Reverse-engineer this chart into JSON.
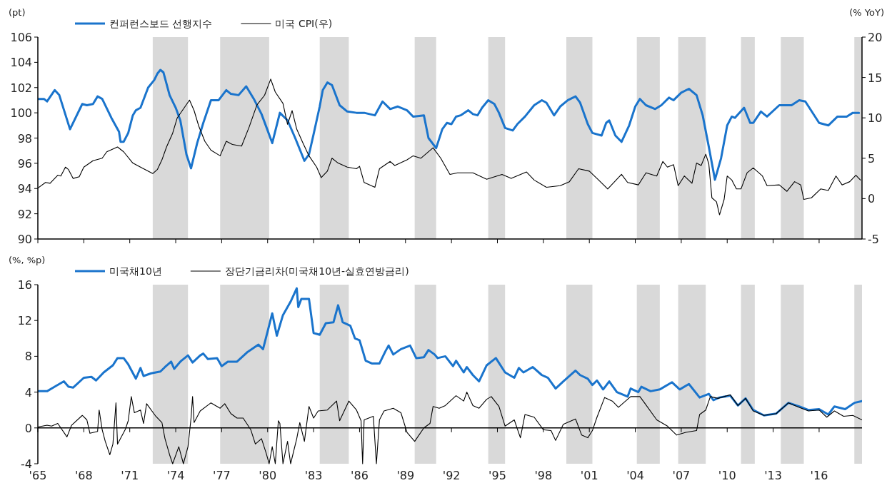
{
  "chart_data": [
    {
      "type": "line",
      "ylabel": "(pt)",
      "y2label": "(% YoY)",
      "legend": "top",
      "tick_labels": "y",
      "xlim": [
        1965,
        2018.8
      ],
      "xticks": [
        {
          "value": 1965,
          "label": null
        },
        {
          "value": 1968,
          "label": null
        },
        {
          "value": 1971,
          "label": null
        },
        {
          "value": 1974,
          "label": null
        },
        {
          "value": 1977,
          "label": null
        },
        {
          "value": 1980,
          "label": null
        },
        {
          "value": 1983,
          "label": null
        },
        {
          "value": 1986,
          "label": null
        },
        {
          "value": 1989,
          "label": null
        },
        {
          "value": 1992,
          "label": null
        },
        {
          "value": 1995,
          "label": null
        },
        {
          "value": 1998,
          "label": null
        },
        {
          "value": 2001,
          "label": null
        },
        {
          "value": 2004,
          "label": null
        },
        {
          "value": 2007,
          "label": null
        },
        {
          "value": 2010,
          "label": null
        },
        {
          "value": 2013,
          "label": null
        },
        {
          "value": 2016,
          "label": null
        }
      ],
      "ylim": [
        90,
        106
      ],
      "yticks": [
        90,
        92,
        94,
        96,
        98,
        100,
        102,
        104,
        106
      ],
      "y2lim": [
        -5,
        20
      ],
      "y2ticks": [
        -5,
        0,
        5,
        10,
        15,
        20
      ],
      "bands": [
        {
          "axis": "x",
          "from": 1972.5,
          "to": 1974.8,
          "color": "#d9d9d9"
        },
        {
          "axis": "x",
          "from": 1976.9,
          "to": 1980.1,
          "color": "#d9d9d9"
        },
        {
          "axis": "x",
          "from": 1983.4,
          "to": 1985.3,
          "color": "#d9d9d9"
        },
        {
          "axis": "x",
          "from": 1989.6,
          "to": 1991.0,
          "color": "#d9d9d9"
        },
        {
          "axis": "x",
          "from": 1994.4,
          "to": 1995.5,
          "color": "#d9d9d9"
        },
        {
          "axis": "x",
          "from": 1999.5,
          "to": 2001.2,
          "color": "#d9d9d9"
        },
        {
          "axis": "x",
          "from": 2004.1,
          "to": 2005.6,
          "color": "#d9d9d9"
        },
        {
          "axis": "x",
          "from": 2006.8,
          "to": 2008.6,
          "color": "#d9d9d9"
        },
        {
          "axis": "x",
          "from": 2010.9,
          "to": 2011.8,
          "color": "#d9d9d9"
        },
        {
          "axis": "x",
          "from": 2013.5,
          "to": 2015.0,
          "color": "#d9d9d9"
        },
        {
          "axis": "x",
          "from": 2018.3,
          "to": 2018.8,
          "color": "#d9d9d9"
        }
      ],
      "series": [
        {
          "name": "컨퍼런스보드 선행지수",
          "color": "#1a74cc",
          "x": [
            1965.0,
            1965.4,
            1965.6,
            1966.1,
            1966.4,
            1967.1,
            1967.9,
            1968.2,
            1968.6,
            1968.9,
            1969.2,
            1969.8,
            1970.3,
            1970.4,
            1970.6,
            1970.9,
            1971.2,
            1971.4,
            1971.7,
            1972.2,
            1972.6,
            1972.8,
            1973.0,
            1973.2,
            1973.6,
            1974.0,
            1974.3,
            1974.7,
            1975.0,
            1975.4,
            1975.8,
            1976.3,
            1976.8,
            1977.3,
            1977.6,
            1978.1,
            1978.6,
            1979.1,
            1979.6,
            1980.0,
            1980.3,
            1980.8,
            1981.3,
            1981.8,
            1982.3,
            1982.4,
            1982.7,
            1983.0,
            1983.4,
            1983.6,
            1983.9,
            1984.2,
            1984.7,
            1985.2,
            1985.8,
            1986.3,
            1987.0,
            1987.5,
            1988.0,
            1988.5,
            1989.1,
            1989.5,
            1990.2,
            1990.5,
            1991.0,
            1991.4,
            1991.7,
            1992.0,
            1992.3,
            1992.6,
            1993.1,
            1993.4,
            1993.7,
            1994.0,
            1994.4,
            1994.8,
            1995.1,
            1995.5,
            1996.0,
            1996.3,
            1996.8,
            1997.4,
            1997.9,
            1998.2,
            1998.7,
            1999.1,
            1999.6,
            2000.1,
            2000.4,
            2000.9,
            2001.2,
            2001.8,
            2002.1,
            2002.3,
            2002.7,
            2003.1,
            2003.6,
            2004.0,
            2004.3,
            2004.7,
            2005.3,
            2005.7,
            2006.2,
            2006.5,
            2007.0,
            2007.5,
            2008.0,
            2008.4,
            2008.8,
            2009.2,
            2009.6,
            2010.0,
            2010.3,
            2010.5,
            2011.1,
            2011.5,
            2011.7,
            2012.2,
            2012.6,
            2013.4,
            2014.2,
            2014.7,
            2015.1,
            2016.0,
            2016.6,
            2017.2,
            2017.8,
            2018.2,
            2018.6
          ],
          "values": [
            101.1,
            101.1,
            100.9,
            101.8,
            101.4,
            98.7,
            100.7,
            100.6,
            100.7,
            101.3,
            101.1,
            99.6,
            98.5,
            97.7,
            97.7,
            98.4,
            99.8,
            100.2,
            100.4,
            102.0,
            102.6,
            103.1,
            103.4,
            103.2,
            101.4,
            100.4,
            99.4,
            96.7,
            95.6,
            97.6,
            99.2,
            101.0,
            101.0,
            101.8,
            101.5,
            101.4,
            102.1,
            101.1,
            99.9,
            98.6,
            97.6,
            100.0,
            99.4,
            98.0,
            96.5,
            96.2,
            96.7,
            98.3,
            100.5,
            101.8,
            102.4,
            102.2,
            100.6,
            100.1,
            100.0,
            100.0,
            99.8,
            100.9,
            100.3,
            100.5,
            100.2,
            99.7,
            99.8,
            98.0,
            97.2,
            98.7,
            99.2,
            99.1,
            99.7,
            99.8,
            100.2,
            99.9,
            99.8,
            100.4,
            101.0,
            100.7,
            100.0,
            98.8,
            98.6,
            99.1,
            99.7,
            100.6,
            101.0,
            100.8,
            99.8,
            100.5,
            101.0,
            101.3,
            100.8,
            99.1,
            98.4,
            98.2,
            99.2,
            99.4,
            98.2,
            97.7,
            99.0,
            100.5,
            101.1,
            100.6,
            100.3,
            100.6,
            101.2,
            101.0,
            101.6,
            101.9,
            101.4,
            99.8,
            97.3,
            94.7,
            96.4,
            99.0,
            99.7,
            99.6,
            100.4,
            99.2,
            99.2,
            100.1,
            99.7,
            100.6,
            100.6,
            101.0,
            100.9,
            99.2,
            99.0,
            99.7,
            99.7,
            100.0,
            100.0
          ]
        },
        {
          "name": "미국 CPI(우)",
          "color": "#000000",
          "axis": "y2",
          "x": [
            1965.0,
            1965.5,
            1965.8,
            1966.3,
            1966.5,
            1966.8,
            1967.0,
            1967.3,
            1967.7,
            1968.0,
            1968.6,
            1969.2,
            1969.5,
            1970.2,
            1970.6,
            1971.2,
            1971.7,
            1972.5,
            1972.8,
            1973.1,
            1973.4,
            1973.8,
            1974.1,
            1974.5,
            1974.9,
            1975.2,
            1975.5,
            1975.9,
            1976.3,
            1976.9,
            1977.3,
            1977.7,
            1978.3,
            1978.8,
            1979.3,
            1979.8,
            1980.2,
            1980.5,
            1981.0,
            1981.3,
            1981.6,
            1981.9,
            1982.3,
            1982.7,
            1983.2,
            1983.5,
            1983.9,
            1984.2,
            1984.6,
            1985.2,
            1985.8,
            1986.0,
            1986.3,
            1987.0,
            1987.3,
            1988.0,
            1988.3,
            1989.1,
            1989.5,
            1990.0,
            1990.8,
            1991.3,
            1991.9,
            1992.4,
            1993.4,
            1994.3,
            1995.3,
            1995.9,
            1996.9,
            1997.4,
            1998.2,
            1999.1,
            1999.7,
            2000.3,
            2001.0,
            2001.5,
            2002.2,
            2003.1,
            2003.5,
            2004.2,
            2004.7,
            2005.4,
            2005.8,
            2006.1,
            2006.5,
            2006.8,
            2007.2,
            2007.7,
            2008.0,
            2008.3,
            2008.6,
            2008.8,
            2009.0,
            2009.3,
            2009.5,
            2009.8,
            2010.0,
            2010.3,
            2010.6,
            2010.9,
            2011.3,
            2011.7,
            2012.3,
            2012.6,
            2013.4,
            2013.9,
            2014.4,
            2014.8,
            2015.0,
            2015.5,
            2016.1,
            2016.6,
            2017.1,
            2017.5,
            2018.0,
            2018.4,
            2018.7
          ],
          "values": [
            1.3,
            2.0,
            1.9,
            2.9,
            2.8,
            3.9,
            3.6,
            2.5,
            2.7,
            3.9,
            4.7,
            5.0,
            5.8,
            6.4,
            5.8,
            4.4,
            3.9,
            3.1,
            3.6,
            4.8,
            6.4,
            8.1,
            10.0,
            11.1,
            12.2,
            10.9,
            9.0,
            7.1,
            6.0,
            5.3,
            7.1,
            6.7,
            6.5,
            8.9,
            11.6,
            12.8,
            14.8,
            13.2,
            11.8,
            9.2,
            10.9,
            8.6,
            6.9,
            5.3,
            3.9,
            2.6,
            3.4,
            5.0,
            4.4,
            3.9,
            3.7,
            4.0,
            2.0,
            1.4,
            3.7,
            4.6,
            4.1,
            4.8,
            5.3,
            5.0,
            6.3,
            5.0,
            3.0,
            3.2,
            3.2,
            2.4,
            3.0,
            2.5,
            3.3,
            2.3,
            1.4,
            1.6,
            2.1,
            3.7,
            3.4,
            2.5,
            1.2,
            3.0,
            2.0,
            1.7,
            3.2,
            2.8,
            4.6,
            3.9,
            4.2,
            1.6,
            2.8,
            1.9,
            4.4,
            4.1,
            5.5,
            4.3,
            0.1,
            -0.4,
            -2.0,
            -0.1,
            2.8,
            2.3,
            1.2,
            1.2,
            3.2,
            3.8,
            2.8,
            1.6,
            1.7,
            0.9,
            2.1,
            1.7,
            -0.1,
            0.1,
            1.2,
            1.0,
            2.8,
            1.7,
            2.1,
            2.9,
            2.3
          ]
        }
      ]
    },
    {
      "type": "line",
      "ylabel": "(%, %p)",
      "legend": "top",
      "xlim": [
        1965,
        2018.8
      ],
      "xticks": [
        {
          "value": 1965,
          "label": "'65"
        },
        {
          "value": 1968,
          "label": "'68"
        },
        {
          "value": 1971,
          "label": "'71"
        },
        {
          "value": 1974,
          "label": "'74"
        },
        {
          "value": 1977,
          "label": "'77"
        },
        {
          "value": 1980,
          "label": "'80"
        },
        {
          "value": 1983,
          "label": "'83"
        },
        {
          "value": 1986,
          "label": "'86"
        },
        {
          "value": 1989,
          "label": "'89"
        },
        {
          "value": 1992,
          "label": "'92"
        },
        {
          "value": 1995,
          "label": "'95"
        },
        {
          "value": 1998,
          "label": "'98"
        },
        {
          "value": 2001,
          "label": "'01"
        },
        {
          "value": 2004,
          "label": "'04"
        },
        {
          "value": 2007,
          "label": "'07"
        },
        {
          "value": 2010,
          "label": "'10"
        },
        {
          "value": 2013,
          "label": "'13"
        },
        {
          "value": 2016,
          "label": "'16"
        }
      ],
      "ylim": [
        -4,
        16
      ],
      "yticks": [
        -4,
        0,
        4,
        8,
        12,
        16
      ],
      "ref_lines": [
        {
          "axis": "y",
          "value": 0,
          "color": "#000000"
        }
      ],
      "bands": [
        {
          "axis": "x",
          "from": 1972.5,
          "to": 1974.8,
          "color": "#d9d9d9"
        },
        {
          "axis": "x",
          "from": 1976.9,
          "to": 1980.1,
          "color": "#d9d9d9"
        },
        {
          "axis": "x",
          "from": 1983.4,
          "to": 1985.3,
          "color": "#d9d9d9"
        },
        {
          "axis": "x",
          "from": 1989.6,
          "to": 1991.0,
          "color": "#d9d9d9"
        },
        {
          "axis": "x",
          "from": 1994.4,
          "to": 1995.5,
          "color": "#d9d9d9"
        },
        {
          "axis": "x",
          "from": 1999.5,
          "to": 2001.2,
          "color": "#d9d9d9"
        },
        {
          "axis": "x",
          "from": 2004.1,
          "to": 2005.6,
          "color": "#d9d9d9"
        },
        {
          "axis": "x",
          "from": 2006.8,
          "to": 2008.6,
          "color": "#d9d9d9"
        },
        {
          "axis": "x",
          "from": 2010.9,
          "to": 2011.8,
          "color": "#d9d9d9"
        },
        {
          "axis": "x",
          "from": 2013.5,
          "to": 2015.0,
          "color": "#d9d9d9"
        },
        {
          "axis": "x",
          "from": 2018.3,
          "to": 2018.8,
          "color": "#d9d9d9"
        }
      ],
      "series": [
        {
          "name": "미국채10년",
          "color": "#1a74cc",
          "x": [
            1965.0,
            1965.6,
            1966.1,
            1966.7,
            1967.0,
            1967.3,
            1968.0,
            1968.5,
            1968.8,
            1969.3,
            1969.9,
            1970.2,
            1970.6,
            1970.9,
            1971.4,
            1971.7,
            1971.9,
            1972.4,
            1973.0,
            1973.3,
            1973.7,
            1973.9,
            1974.3,
            1974.8,
            1975.1,
            1975.6,
            1975.8,
            1976.1,
            1976.7,
            1977.0,
            1977.4,
            1978.0,
            1978.7,
            1979.4,
            1979.7,
            1980.0,
            1980.3,
            1980.6,
            1981.0,
            1981.5,
            1981.9,
            1982.0,
            1982.2,
            1982.7,
            1983.0,
            1983.4,
            1983.8,
            1984.3,
            1984.6,
            1984.9,
            1985.4,
            1985.7,
            1986.0,
            1986.4,
            1986.8,
            1987.0,
            1987.3,
            1987.7,
            1987.9,
            1988.2,
            1988.7,
            1989.3,
            1989.7,
            1990.2,
            1990.5,
            1990.9,
            1991.1,
            1991.6,
            1992.1,
            1992.3,
            1992.8,
            1993.0,
            1993.4,
            1993.8,
            1994.3,
            1994.9,
            1995.5,
            1996.1,
            1996.4,
            1996.7,
            1997.3,
            1997.9,
            1998.3,
            1998.8,
            1999.3,
            2000.1,
            2000.4,
            2000.9,
            2001.2,
            2001.5,
            2001.9,
            2002.3,
            2002.8,
            2003.5,
            2003.7,
            2004.2,
            2004.4,
            2005.0,
            2005.6,
            2006.4,
            2006.9,
            2007.5,
            2008.2,
            2008.8,
            2009.1,
            2009.5,
            2010.2,
            2010.7,
            2011.2,
            2011.7,
            2012.4,
            2013.2,
            2014.0,
            2014.7,
            2015.3,
            2016.0,
            2016.6,
            2017.0,
            2017.7,
            2018.3,
            2018.8
          ],
          "values": [
            4.1,
            4.1,
            4.6,
            5.2,
            4.6,
            4.5,
            5.6,
            5.7,
            5.3,
            6.2,
            7.0,
            7.8,
            7.8,
            7.1,
            5.5,
            6.7,
            5.8,
            6.1,
            6.3,
            6.8,
            7.4,
            6.6,
            7.4,
            8.1,
            7.3,
            8.1,
            8.3,
            7.7,
            7.8,
            6.9,
            7.4,
            7.4,
            8.5,
            9.3,
            8.8,
            10.8,
            12.8,
            10.3,
            12.6,
            14.1,
            15.6,
            13.5,
            14.4,
            14.4,
            10.6,
            10.4,
            11.7,
            11.8,
            13.7,
            11.8,
            11.4,
            10.0,
            9.8,
            7.5,
            7.2,
            7.2,
            7.2,
            8.6,
            9.2,
            8.2,
            8.8,
            9.2,
            7.8,
            7.9,
            8.7,
            8.2,
            7.8,
            8.0,
            6.9,
            7.5,
            6.2,
            6.8,
            5.9,
            5.2,
            7.0,
            7.8,
            6.2,
            5.6,
            6.7,
            6.2,
            6.8,
            5.9,
            5.6,
            4.4,
            5.2,
            6.4,
            5.9,
            5.5,
            4.8,
            5.3,
            4.3,
            5.2,
            4.0,
            3.5,
            4.4,
            4.0,
            4.6,
            4.1,
            4.3,
            5.1,
            4.3,
            4.9,
            3.4,
            3.8,
            3.1,
            3.4,
            3.6,
            2.5,
            3.3,
            2.0,
            1.4,
            1.6,
            2.8,
            2.4,
            2.0,
            2.1,
            1.5,
            2.4,
            2.1,
            2.8,
            3.0
          ]
        },
        {
          "name": "장단기금리차(미국채10년-실효연방금리)",
          "color": "#000000",
          "x": [
            1965.0,
            1965.6,
            1965.9,
            1966.3,
            1966.9,
            1967.2,
            1967.9,
            1968.2,
            1968.4,
            1968.9,
            1969.0,
            1969.2,
            1969.4,
            1969.7,
            1969.9,
            1970.1,
            1970.2,
            1970.7,
            1970.9,
            1971.1,
            1971.3,
            1971.7,
            1971.9,
            1972.1,
            1972.7,
            1973.1,
            1973.3,
            1973.6,
            1973.8,
            1974.2,
            1974.5,
            1974.8,
            1975.0,
            1975.1,
            1975.2,
            1975.6,
            1976.3,
            1976.9,
            1977.2,
            1977.6,
            1978.0,
            1978.4,
            1978.9,
            1979.2,
            1979.6,
            1979.9,
            1980.1,
            1980.3,
            1980.5,
            1980.7,
            1980.8,
            1981.0,
            1981.3,
            1981.5,
            1981.9,
            1982.1,
            1982.4,
            1982.7,
            1983.0,
            1983.3,
            1983.9,
            1984.5,
            1984.7,
            1985.3,
            1985.8,
            1986.1,
            1986.2,
            1986.3,
            1986.9,
            1987.1,
            1987.3,
            1987.6,
            1988.2,
            1988.7,
            1989.1,
            1989.6,
            1990.2,
            1990.6,
            1990.8,
            1991.2,
            1991.6,
            1992.3,
            1992.8,
            1993.0,
            1993.4,
            1993.8,
            1994.3,
            1994.6,
            1995.1,
            1995.5,
            1996.1,
            1996.5,
            1996.8,
            1997.4,
            1998.0,
            1998.5,
            1998.8,
            1999.3,
            2000.1,
            2000.5,
            2000.9,
            2001.2,
            2001.5,
            2002.0,
            2002.5,
            2002.9,
            2003.7,
            2004.3,
            2004.6,
            2005.4,
            2006.1,
            2006.7,
            2007.3,
            2008.0,
            2008.2,
            2008.6,
            2008.9,
            2009.4,
            2010.2,
            2010.7,
            2011.2,
            2011.7,
            2012.4,
            2013.2,
            2014.0,
            2014.7,
            2015.3,
            2016.0,
            2016.5,
            2017.0,
            2017.6,
            2018.2,
            2018.8
          ],
          "values": [
            0.1,
            0.3,
            0.2,
            0.5,
            -1.0,
            0.3,
            1.4,
            0.9,
            -0.6,
            -0.4,
            2.0,
            -0.2,
            -1.5,
            -3.0,
            -1.8,
            2.8,
            -1.8,
            -0.2,
            0.8,
            3.5,
            1.7,
            2.0,
            0.5,
            2.7,
            1.3,
            0.6,
            -1.2,
            -3.0,
            -4.0,
            -2.1,
            -4.0,
            -2.1,
            1.1,
            3.5,
            0.6,
            1.9,
            2.8,
            2.2,
            2.7,
            1.6,
            1.1,
            1.1,
            -0.2,
            -1.8,
            -1.2,
            -2.8,
            -4.0,
            -2.1,
            -4.0,
            0.8,
            0.5,
            -4.0,
            -1.5,
            -4.0,
            -1.2,
            0.6,
            -1.5,
            2.4,
            1.1,
            1.9,
            2.0,
            3.0,
            0.8,
            3.0,
            2.0,
            0.8,
            -4.0,
            0.9,
            1.3,
            -4.0,
            0.9,
            1.9,
            2.2,
            1.7,
            -0.5,
            -1.5,
            0.0,
            0.5,
            2.4,
            2.2,
            2.5,
            3.6,
            3.0,
            4.0,
            2.5,
            2.2,
            3.2,
            3.5,
            2.4,
            0.2,
            0.9,
            -1.1,
            1.5,
            1.2,
            -0.2,
            -0.3,
            -1.4,
            0.4,
            1.0,
            -0.8,
            -1.1,
            -0.3,
            1.2,
            3.4,
            3.0,
            2.3,
            3.5,
            3.5,
            2.8,
            0.9,
            0.2,
            -0.8,
            -0.5,
            -0.3,
            1.5,
            2.0,
            3.5,
            3.3,
            3.7,
            2.5,
            3.3,
            1.9,
            1.4,
            1.6,
            2.8,
            2.3,
            1.9,
            2.0,
            1.2,
            1.9,
            1.3,
            1.4,
            0.9
          ]
        }
      ]
    }
  ]
}
